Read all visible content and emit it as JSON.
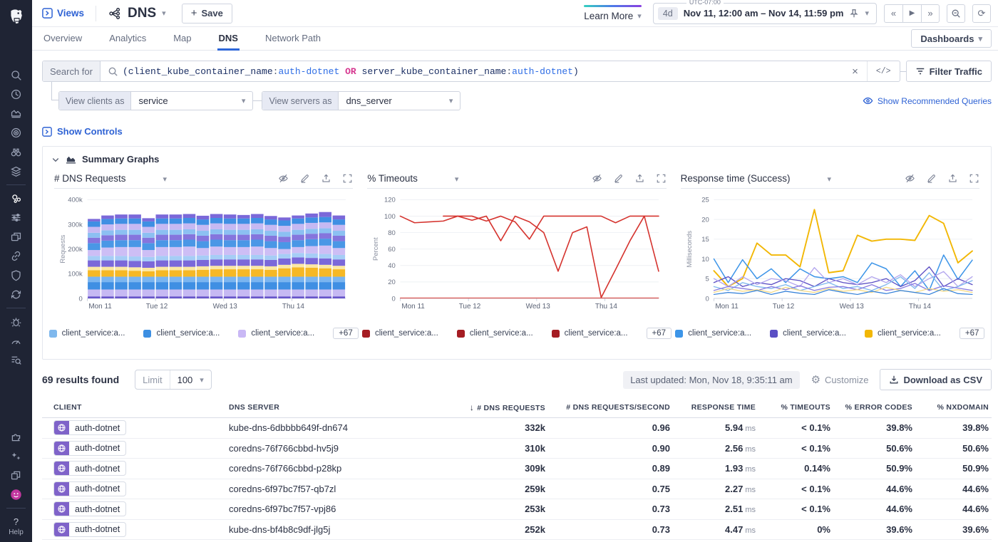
{
  "header": {
    "views_label": "Views",
    "title": "DNS",
    "save_label": "Save",
    "learn_more_label": "Learn More",
    "time": {
      "utc": "UTC-07:00",
      "range_shortcut": "4d",
      "range_text": "Nov 11, 12:00 am – Nov 14, 11:59 pm"
    },
    "dashboards_label": "Dashboards"
  },
  "tabs": {
    "items": [
      "Overview",
      "Analytics",
      "Map",
      "DNS",
      "Network Path"
    ],
    "active": "DNS"
  },
  "search": {
    "label": "Search for",
    "query_tokens": [
      {
        "t": "(",
        "c": "paren"
      },
      {
        "t": "client_kube_container_name",
        "c": "field"
      },
      {
        "t": ":",
        "c": "colon"
      },
      {
        "t": "auth-dotnet",
        "c": "value"
      },
      {
        "t": " ",
        "c": "colon"
      },
      {
        "t": "OR",
        "c": "op"
      },
      {
        "t": " ",
        "c": "colon"
      },
      {
        "t": "server_kube_container_name",
        "c": "field"
      },
      {
        "t": ":",
        "c": "colon"
      },
      {
        "t": "auth-dotnet",
        "c": "value"
      },
      {
        "t": ")",
        "c": "paren"
      }
    ],
    "code_toggle_label": "</>",
    "filter_button_label": "Filter Traffic",
    "view_clients_label": "View clients as",
    "view_clients_value": "service",
    "view_servers_label": "View servers as",
    "view_servers_value": "dns_server",
    "show_recommended_label": "Show Recommended Queries"
  },
  "controls": {
    "show_controls_label": "Show Controls",
    "summary_title": "Summary Graphs"
  },
  "chart_data": [
    {
      "type": "bar",
      "title": "# DNS Requests",
      "ylabel": "Requests",
      "ylim": [
        0,
        400000
      ],
      "ytick_vals": [
        0,
        100000,
        200000,
        300000,
        400000
      ],
      "ytick_labels": [
        "0",
        "100k",
        "200k",
        "300k",
        "400k"
      ],
      "xtick_labels": [
        "Mon 11",
        "Tue 12",
        "Wed 13",
        "Thu 14"
      ],
      "xtick_pos": [
        0.0,
        0.264,
        0.528,
        0.792
      ],
      "legend": [
        {
          "color": "#7fb8ed",
          "label": "client_service:a..."
        },
        {
          "color": "#3d8fe2",
          "label": "client_service:a..."
        },
        {
          "color": "#c9b8f5",
          "label": "client_service:a..."
        }
      ],
      "legend_more": "+67",
      "series": [
        {
          "name": "s1",
          "color": "#6553c9",
          "values": [
            8,
            8,
            8,
            8,
            8,
            8,
            8,
            8,
            8,
            8,
            8,
            8,
            8,
            8,
            8,
            8,
            8,
            8,
            8
          ]
        },
        {
          "name": "s2",
          "color": "#c6b9f3",
          "values": [
            28,
            28,
            28,
            28,
            28,
            28,
            28,
            28,
            28,
            28,
            28,
            28,
            28,
            28,
            28,
            28,
            28,
            28,
            28
          ]
        },
        {
          "name": "s3",
          "color": "#3f8fe3",
          "values": [
            30,
            30,
            30,
            30,
            30,
            30,
            30,
            30,
            30,
            30,
            30,
            30,
            30,
            30,
            30,
            30,
            30,
            30,
            30
          ]
        },
        {
          "name": "s4",
          "color": "#7ab5f0",
          "values": [
            22,
            22,
            22,
            22,
            22,
            22,
            22,
            22,
            22,
            22,
            22,
            22,
            22,
            22,
            22,
            22,
            22,
            22,
            22
          ]
        },
        {
          "name": "s5",
          "color": "#f6b825",
          "values": [
            26,
            26,
            26,
            24,
            22,
            26,
            26,
            26,
            28,
            30,
            30,
            30,
            30,
            28,
            34,
            38,
            36,
            34,
            30
          ]
        },
        {
          "name": "s6",
          "color": "#fbe8a4",
          "values": [
            14,
            14,
            14,
            14,
            14,
            14,
            14,
            14,
            14,
            14,
            14,
            14,
            14,
            14,
            14,
            14,
            14,
            14,
            14
          ]
        },
        {
          "name": "s7",
          "color": "#7b68d9",
          "values": [
            26,
            26,
            26,
            26,
            26,
            26,
            26,
            26,
            26,
            26,
            26,
            26,
            26,
            26,
            26,
            26,
            26,
            26,
            26
          ]
        },
        {
          "name": "s8",
          "color": "#a6cdf6",
          "values": [
            18,
            18,
            18,
            18,
            18,
            18,
            18,
            18,
            18,
            18,
            18,
            18,
            18,
            18,
            18,
            18,
            18,
            18,
            18
          ]
        },
        {
          "name": "s9",
          "color": "#cdbef5",
          "values": [
            24,
            34,
            36,
            38,
            28,
            36,
            36,
            38,
            30,
            34,
            32,
            32,
            34,
            30,
            20,
            24,
            30,
            34,
            28
          ]
        },
        {
          "name": "s10",
          "color": "#4a97e6",
          "values": [
            28,
            28,
            28,
            28,
            28,
            28,
            28,
            28,
            28,
            28,
            28,
            28,
            28,
            28,
            28,
            28,
            28,
            28,
            28
          ]
        },
        {
          "name": "s11",
          "color": "#8575dd",
          "values": [
            22,
            22,
            22,
            22,
            22,
            22,
            22,
            22,
            22,
            22,
            22,
            22,
            22,
            22,
            22,
            22,
            22,
            22,
            22
          ]
        },
        {
          "name": "s12",
          "color": "#8cc0f2",
          "values": [
            20,
            20,
            20,
            20,
            20,
            20,
            20,
            20,
            20,
            20,
            20,
            20,
            20,
            20,
            20,
            20,
            20,
            20,
            20
          ]
        },
        {
          "name": "s13",
          "color": "#c6b9f3",
          "values": [
            24,
            24,
            24,
            24,
            24,
            24,
            24,
            24,
            24,
            24,
            24,
            24,
            24,
            24,
            24,
            24,
            24,
            24,
            24
          ]
        },
        {
          "name": "s14",
          "color": "#3f8fe3",
          "values": [
            22,
            22,
            22,
            22,
            22,
            22,
            22,
            22,
            22,
            22,
            22,
            22,
            22,
            22,
            22,
            22,
            22,
            22,
            22
          ]
        },
        {
          "name": "s15",
          "color": "#7b68d9",
          "values": [
            10,
            14,
            16,
            16,
            13,
            16,
            16,
            16,
            15,
            16,
            16,
            14,
            16,
            14,
            12,
            12,
            16,
            20,
            16
          ]
        }
      ],
      "value_unit": "k"
    },
    {
      "type": "line",
      "title": "% Timeouts",
      "ylabel": "Percent",
      "ylim": [
        0,
        120
      ],
      "ytick_vals": [
        0,
        20,
        40,
        60,
        80,
        100,
        120
      ],
      "ytick_labels": [
        "0",
        "20",
        "40",
        "60",
        "80",
        "100",
        "120"
      ],
      "xtick_labels": [
        "Mon 11",
        "Tue 12",
        "Wed 13",
        "Thu 14"
      ],
      "xtick_pos": [
        0.0,
        0.264,
        0.528,
        0.792
      ],
      "legend": [
        {
          "color": "#a51d23",
          "label": "client_service:a..."
        },
        {
          "color": "#a51d23",
          "label": "client_service:a..."
        },
        {
          "color": "#a51d23",
          "label": "client_service:a..."
        }
      ],
      "legend_more": "+67",
      "series": [
        {
          "name": "timeout-a",
          "color": "#d5342f",
          "width": 1.7,
          "values": [
            100,
            92,
            93,
            94,
            100,
            95,
            100,
            70,
            100,
            93,
            80,
            33,
            80,
            87,
            1,
            35,
            70,
            100,
            100
          ]
        },
        {
          "name": "timeout-b",
          "color": "#d5342f",
          "width": 1.7,
          "values": [
            null,
            null,
            null,
            100,
            100,
            100,
            94,
            100,
            93,
            72,
            100,
            100,
            100,
            100,
            100,
            92,
            100,
            100,
            33
          ]
        },
        {
          "name": "timeout-zero",
          "color": "#d5342f",
          "width": 1,
          "values": [
            0.5,
            0.5,
            0.5,
            0.5,
            0.5,
            0.5,
            0.5,
            0.5,
            0.5,
            0.5,
            0.5,
            0.5,
            0.5,
            0.5,
            0.5,
            0.5,
            0.5,
            0.5,
            0.5
          ]
        }
      ]
    },
    {
      "type": "line",
      "title": "Response time (Success)",
      "ylabel": "Milliseconds",
      "ylim": [
        0,
        25
      ],
      "ytick_vals": [
        0,
        5,
        10,
        15,
        20,
        25
      ],
      "ytick_labels": [
        "0",
        "5",
        "10",
        "15",
        "20",
        "25"
      ],
      "xtick_labels": [
        "Mon 11",
        "Tue 12",
        "Wed 13",
        "Thu 14"
      ],
      "xtick_pos": [
        0.0,
        0.264,
        0.528,
        0.792
      ],
      "legend": [
        {
          "color": "#3d95e8",
          "label": "client_service:a..."
        },
        {
          "color": "#5b4fc4",
          "label": "client_service:a..."
        },
        {
          "color": "#f2b705",
          "label": "client_service:a..."
        }
      ],
      "legend_more": "+67",
      "series": [
        {
          "name": "rt-yellow",
          "color": "#f2b705",
          "width": 2,
          "values": [
            7,
            3,
            5,
            14,
            11,
            11,
            8,
            22.5,
            6.5,
            7,
            16,
            14.5,
            15,
            15,
            14.7,
            21,
            19,
            9,
            12
          ]
        },
        {
          "name": "rt-blue",
          "color": "#3d95e8",
          "width": 1.6,
          "values": [
            10,
            4,
            9.8,
            5,
            7.5,
            4,
            7.5,
            5.5,
            5,
            5.5,
            4,
            9,
            7.5,
            3,
            7,
            2,
            11,
            4.8,
            9.7
          ]
        },
        {
          "name": "rt-indigo",
          "color": "#5b4fc4",
          "width": 1.4,
          "values": [
            4,
            5.5,
            3,
            4,
            3.5,
            5,
            4.5,
            3,
            5,
            4,
            3.5,
            4,
            5,
            3,
            4.5,
            8,
            3,
            5,
            3.5
          ]
        },
        {
          "name": "rt-lavender",
          "color": "#b3a6ee",
          "width": 1.4,
          "values": [
            5,
            3,
            5.5,
            3.5,
            5,
            4.5,
            3,
            7.8,
            4,
            5,
            3.5,
            5.5,
            4,
            6,
            3,
            5,
            6.8,
            3,
            5.5
          ]
        },
        {
          "name": "rt-lightblue",
          "color": "#7fb8ed",
          "width": 1.4,
          "values": [
            3,
            2,
            4,
            3,
            2.5,
            3.5,
            2,
            3,
            4,
            2.5,
            3,
            2,
            3.5,
            5.5,
            2.5,
            6.5,
            2,
            3,
            4.5
          ]
        },
        {
          "name": "rt-purple",
          "color": "#8a7ce0",
          "width": 1.4,
          "values": [
            2,
            3,
            2.5,
            2,
            3,
            2.2,
            3.2,
            2,
            2.8,
            3,
            2.2,
            3.5,
            2,
            2.5,
            3.8,
            2,
            3.2,
            2.6,
            2
          ]
        },
        {
          "name": "rt-paleyellow",
          "color": "#f5d982",
          "width": 1.3,
          "values": [
            1.5,
            2.5,
            1.8,
            2.2,
            1.5,
            2.8,
            2,
            1.5,
            2.5,
            1.8,
            2.2,
            1.5,
            2.8,
            2,
            1.5,
            2.5,
            1.8,
            2.2,
            1.5
          ]
        },
        {
          "name": "rt-blue2",
          "color": "#2f7ed8",
          "width": 1.3,
          "values": [
            1,
            1.5,
            1.2,
            2,
            1,
            1.8,
            1.3,
            1,
            2.2,
            1.5,
            1,
            1.8,
            1.2,
            2,
            1.5,
            1,
            2.5,
            1.2,
            1
          ]
        }
      ]
    }
  ],
  "results": {
    "count_text": "69 results found",
    "limit_label": "Limit",
    "limit_value": "100",
    "last_updated": "Last updated: Mon, Nov 18, 9:35:11 am",
    "customize_label": "Customize",
    "download_label": "Download as CSV"
  },
  "table": {
    "columns": [
      "Client",
      "DNS Server",
      "# DNS Requests",
      "# DNS Requests/Second",
      "Response Time",
      "% Timeouts",
      "% Error Codes",
      "% NXDOMAIN"
    ],
    "sorted_column": "# DNS Requests",
    "rows": [
      {
        "client": "auth-dotnet",
        "server": "kube-dns-6dbbbb649f-dn674",
        "requests": "332k",
        "rps": "0.96",
        "response": "5.94",
        "response_unit": "ms",
        "timeouts": "< 0.1%",
        "errors": "39.8%",
        "nxdomain": "39.8%"
      },
      {
        "client": "auth-dotnet",
        "server": "coredns-76f766cbbd-hv5j9",
        "requests": "310k",
        "rps": "0.90",
        "response": "2.56",
        "response_unit": "ms",
        "timeouts": "< 0.1%",
        "errors": "50.6%",
        "nxdomain": "50.6%"
      },
      {
        "client": "auth-dotnet",
        "server": "coredns-76f766cbbd-p28kp",
        "requests": "309k",
        "rps": "0.89",
        "response": "1.93",
        "response_unit": "ms",
        "timeouts": "0.14%",
        "errors": "50.9%",
        "nxdomain": "50.9%"
      },
      {
        "client": "auth-dotnet",
        "server": "coredns-6f97bc7f57-qb7zl",
        "requests": "259k",
        "rps": "0.75",
        "response": "2.27",
        "response_unit": "ms",
        "timeouts": "< 0.1%",
        "errors": "44.6%",
        "nxdomain": "44.6%"
      },
      {
        "client": "auth-dotnet",
        "server": "coredns-6f97bc7f57-vpj86",
        "requests": "253k",
        "rps": "0.73",
        "response": "2.51",
        "response_unit": "ms",
        "timeouts": "< 0.1%",
        "errors": "44.6%",
        "nxdomain": "44.6%"
      },
      {
        "client": "auth-dotnet",
        "server": "kube-dns-bf4b8c9df-jlg5j",
        "requests": "252k",
        "rps": "0.73",
        "response": "4.47",
        "response_unit": "ms",
        "timeouts": "0%",
        "errors": "39.6%",
        "nxdomain": "39.6%"
      }
    ]
  },
  "sidebar": {
    "top_items": [
      {
        "icon": "search"
      },
      {
        "icon": "clock"
      },
      {
        "icon": "areachart"
      },
      {
        "icon": "target"
      },
      {
        "icon": "binoculars"
      },
      {
        "icon": "layers"
      },
      {
        "divider": true
      },
      {
        "icon": "cluster",
        "active": true
      },
      {
        "icon": "sliders"
      },
      {
        "icon": "windows"
      },
      {
        "icon": "link"
      },
      {
        "icon": "shield"
      },
      {
        "icon": "sync"
      },
      {
        "divider": true
      },
      {
        "icon": "bug"
      },
      {
        "icon": "gauge"
      },
      {
        "icon": "logsearch"
      }
    ],
    "bottom_items": [
      {
        "icon": "puzzle"
      },
      {
        "icon": "sparkles"
      },
      {
        "icon": "copy"
      },
      {
        "icon": "avatar"
      }
    ],
    "help_label": "Help"
  },
  "colors": {
    "accent_blue": "#2e62d4",
    "sidebar_bg": "#1f2434",
    "chip_purple": "#7f63c9",
    "timeout_red": "#d5342f"
  }
}
